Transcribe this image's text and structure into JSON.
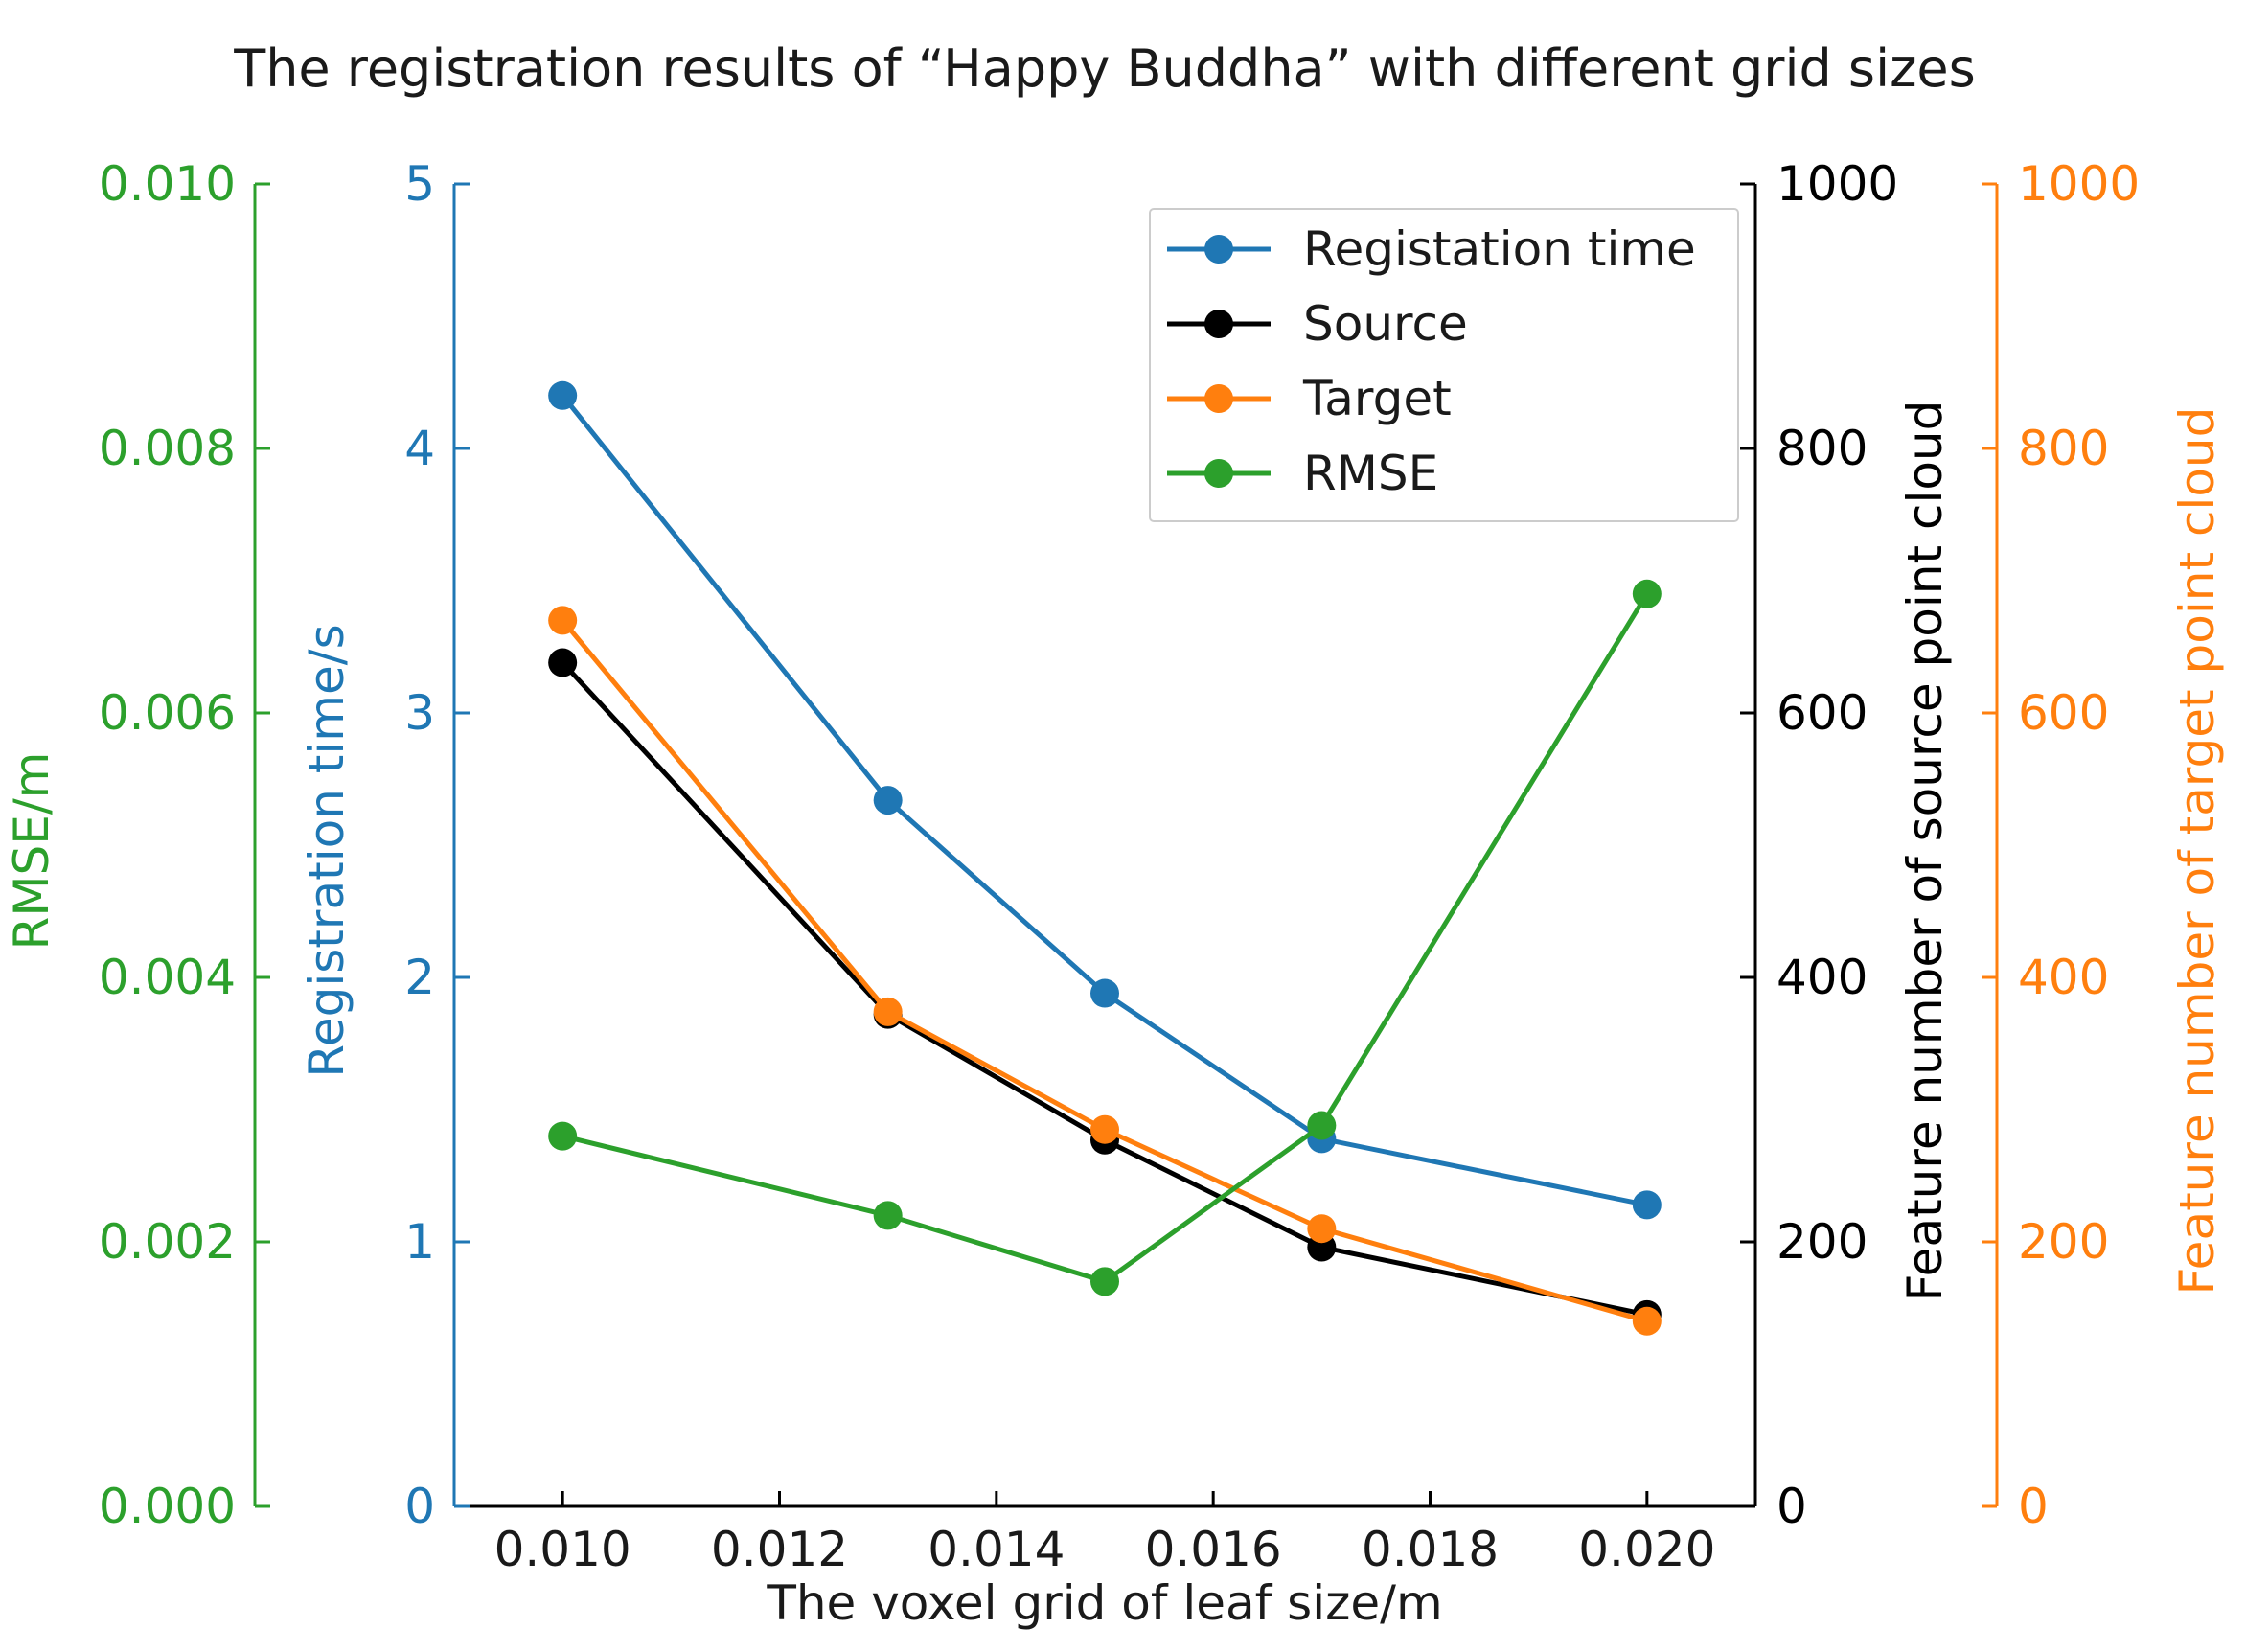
{
  "chart_data": {
    "type": "line",
    "title": "The registration results of “Happy Buddha” with different grid sizes",
    "xlabel": "The voxel grid of leaf size/m",
    "x": [
      0.01,
      0.013,
      0.015,
      0.017,
      0.02
    ],
    "xlim": [
      0.009,
      0.021
    ],
    "xticks": [
      "0.010",
      "0.012",
      "0.014",
      "0.016",
      "0.018",
      "0.020"
    ],
    "xtick_values": [
      0.01,
      0.012,
      0.014,
      0.016,
      0.018,
      0.02
    ],
    "axes": {
      "rmse": {
        "label": "RMSE/m",
        "color": "#2ca02c",
        "ylim": [
          0,
          0.01
        ],
        "ticks": [
          "0.000",
          "0.002",
          "0.004",
          "0.006",
          "0.008",
          "0.010"
        ],
        "tick_values": [
          0,
          0.002,
          0.004,
          0.006,
          0.008,
          0.01
        ]
      },
      "time": {
        "label": "Registration time/s",
        "color": "#1f77b4",
        "ylim": [
          0,
          5
        ],
        "ticks": [
          "0",
          "1",
          "2",
          "3",
          "4",
          "5"
        ],
        "tick_values": [
          0,
          1,
          2,
          3,
          4,
          5
        ]
      },
      "source": {
        "label": "Feature number of source point cloud",
        "color": "#000000",
        "ylim": [
          0,
          1000
        ],
        "ticks": [
          "0",
          "200",
          "400",
          "600",
          "800",
          "1000"
        ],
        "tick_values": [
          0,
          200,
          400,
          600,
          800,
          1000
        ]
      },
      "target": {
        "label": "Feature number of target point cloud",
        "color": "#ff7f0e",
        "ylim": [
          0,
          1000
        ],
        "ticks": [
          "0",
          "200",
          "400",
          "600",
          "800",
          "1000"
        ],
        "tick_values": [
          0,
          200,
          400,
          600,
          800,
          1000
        ]
      }
    },
    "series": [
      {
        "name": "Registation time",
        "axis": "time",
        "color": "#1f77b4",
        "values": [
          4.2,
          2.67,
          1.94,
          1.39,
          1.14
        ]
      },
      {
        "name": "Source",
        "axis": "source",
        "color": "#000000",
        "values": [
          638,
          372,
          277,
          196,
          145
        ]
      },
      {
        "name": "Target",
        "axis": "target",
        "color": "#ff7f0e",
        "values": [
          670,
          374,
          285,
          210,
          140
        ]
      },
      {
        "name": "RMSE",
        "axis": "rmse",
        "color": "#2ca02c",
        "values": [
          0.0028,
          0.0022,
          0.0017,
          0.00288,
          0.0069
        ]
      }
    ],
    "legend": {
      "position": "upper-right",
      "order": [
        "Registation time",
        "Source",
        "Target",
        "RMSE"
      ]
    }
  }
}
